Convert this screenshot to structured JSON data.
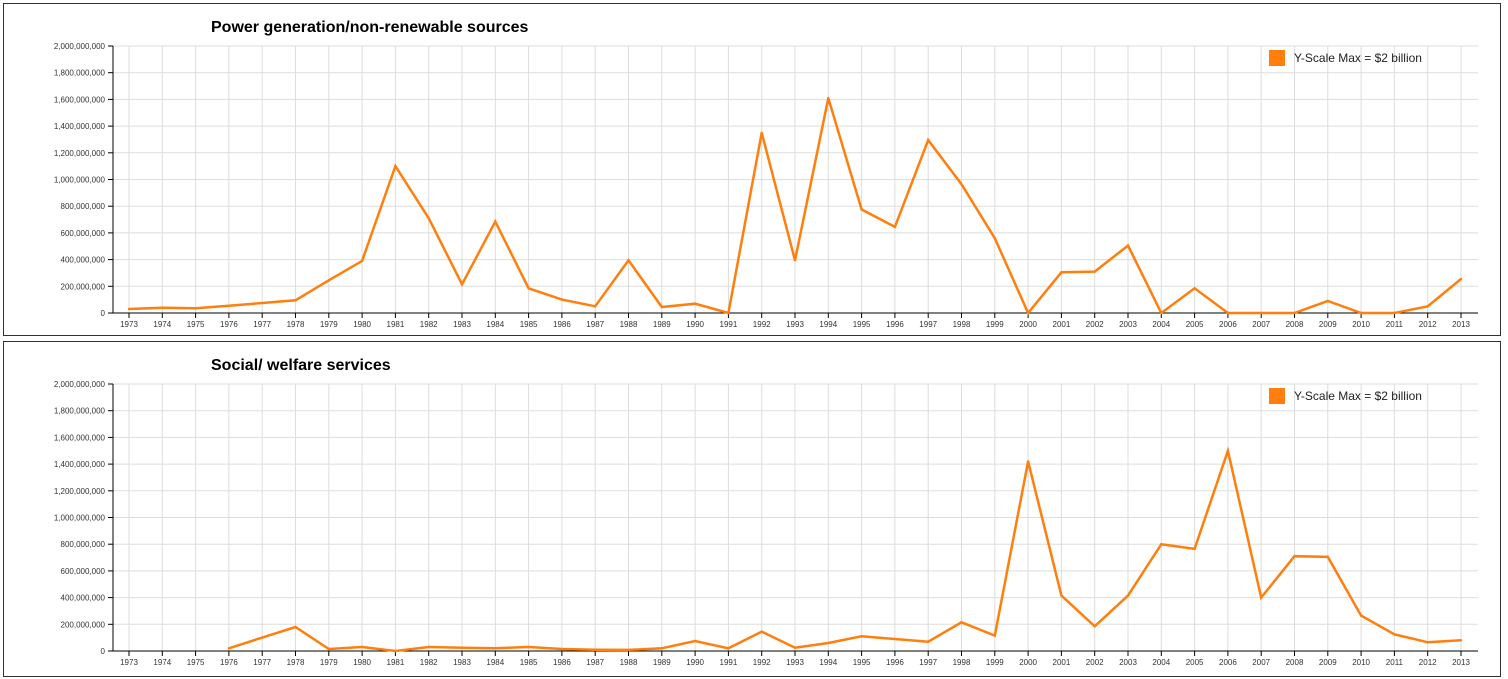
{
  "chart_data": [
    {
      "type": "line",
      "title": "Power generation/non-renewable sources",
      "xlabel": "",
      "ylabel": "",
      "ylim": [
        0,
        2000000000
      ],
      "yticks": [
        "0",
        "200,000,000",
        "400,000,000",
        "600,000,000",
        "800,000,000",
        "1,000,000,000",
        "1,200,000,000",
        "1,400,000,000",
        "1,600,000,000",
        "1,800,000,000",
        "2,000,000,000"
      ],
      "grid": true,
      "legend_position": "top-right",
      "legend_label": "Y-Scale Max = $2 billion",
      "color": "#ff7f0e",
      "categories": [
        "1973",
        "1974",
        "1975",
        "1976",
        "1977",
        "1978",
        "1979",
        "1980",
        "1981",
        "1982",
        "1983",
        "1984",
        "1985",
        "1986",
        "1987",
        "1988",
        "1989",
        "1990",
        "1991",
        "1992",
        "1993",
        "1994",
        "1995",
        "1996",
        "1997",
        "1998",
        "1999",
        "2000",
        "2001",
        "2002",
        "2003",
        "2004",
        "2005",
        "2006",
        "2007",
        "2008",
        "2009",
        "2010",
        "2011",
        "2012",
        "2013"
      ],
      "series": [
        {
          "values": [
            30000000,
            40000000,
            35000000,
            55000000,
            75000000,
            95000000,
            245000000,
            390000000,
            1100000000,
            710000000,
            215000000,
            685000000,
            185000000,
            100000000,
            50000000,
            395000000,
            45000000,
            70000000,
            0,
            1350000000,
            395000000,
            1610000000,
            775000000,
            645000000,
            1295000000,
            965000000,
            560000000,
            0,
            305000000,
            310000000,
            505000000,
            0,
            185000000,
            0,
            0,
            0,
            90000000,
            0,
            0,
            50000000,
            255000000
          ]
        }
      ]
    },
    {
      "type": "line",
      "title": "Social/ welfare services",
      "xlabel": "",
      "ylabel": "",
      "ylim": [
        0,
        2000000000
      ],
      "yticks": [
        "0",
        "200,000,000",
        "400,000,000",
        "600,000,000",
        "800,000,000",
        "1,000,000,000",
        "1,200,000,000",
        "1,400,000,000",
        "1,600,000,000",
        "1,800,000,000",
        "2,000,000,000"
      ],
      "grid": true,
      "legend_position": "top-right",
      "legend_label": "Y-Scale Max = $2 billion",
      "color": "#ff7f0e",
      "categories": [
        "1973",
        "1974",
        "1975",
        "1976",
        "1977",
        "1978",
        "1979",
        "1980",
        "1981",
        "1982",
        "1983",
        "1984",
        "1985",
        "1986",
        "1987",
        "1988",
        "1989",
        "1990",
        "1991",
        "1992",
        "1993",
        "1994",
        "1995",
        "1996",
        "1997",
        "1998",
        "1999",
        "2000",
        "2001",
        "2002",
        "2003",
        "2004",
        "2005",
        "2006",
        "2007",
        "2008",
        "2009",
        "2010",
        "2011",
        "2012",
        "2013"
      ],
      "series": [
        {
          "values": [
            null,
            null,
            null,
            20000000,
            100000000,
            180000000,
            15000000,
            30000000,
            0,
            30000000,
            25000000,
            20000000,
            30000000,
            15000000,
            10000000,
            8000000,
            20000000,
            75000000,
            20000000,
            145000000,
            25000000,
            60000000,
            110000000,
            90000000,
            70000000,
            215000000,
            115000000,
            1420000000,
            415000000,
            185000000,
            415000000,
            800000000,
            765000000,
            1500000000,
            400000000,
            710000000,
            705000000,
            265000000,
            125000000,
            65000000,
            80000000
          ]
        }
      ]
    }
  ]
}
